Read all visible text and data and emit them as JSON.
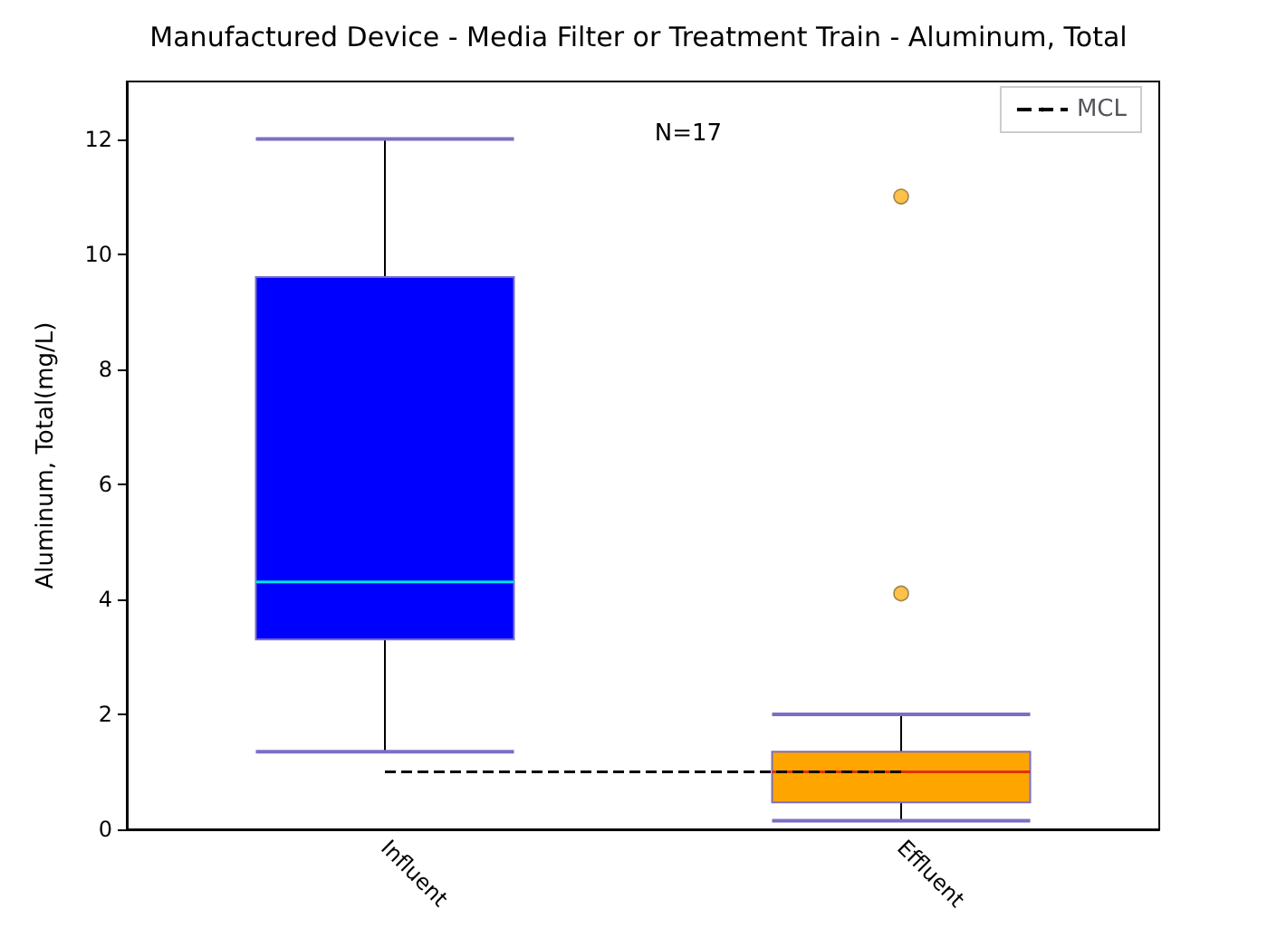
{
  "chart_data": {
    "type": "box",
    "title": "Manufactured Device - Media Filter or Treatment Train - Aluminum, Total",
    "ylabel": "Aluminum, Total(mg/L)",
    "categories": [
      "Influent",
      "Effluent"
    ],
    "boxes": [
      {
        "low": 1.35,
        "q1": 3.3,
        "median": 4.3,
        "q3": 9.6,
        "high": 12
      },
      {
        "low": 0.15,
        "q1": 0.47,
        "median": 1.0,
        "q3": 1.35,
        "high": 2.0,
        "outliers": [
          11,
          4.1
        ]
      }
    ],
    "colors": [
      "#0000ff",
      "#ffa500"
    ],
    "ylim": [
      0,
      13
    ],
    "yticks": [
      0,
      2,
      4,
      6,
      8,
      10,
      12
    ],
    "grid": false,
    "legend": "top right",
    "ref_lines": [
      {
        "axis": "y",
        "value": 1,
        "label": "MCL",
        "color": "#000000",
        "line_style": "dashed"
      }
    ],
    "annotations": [
      "N=17"
    ]
  }
}
